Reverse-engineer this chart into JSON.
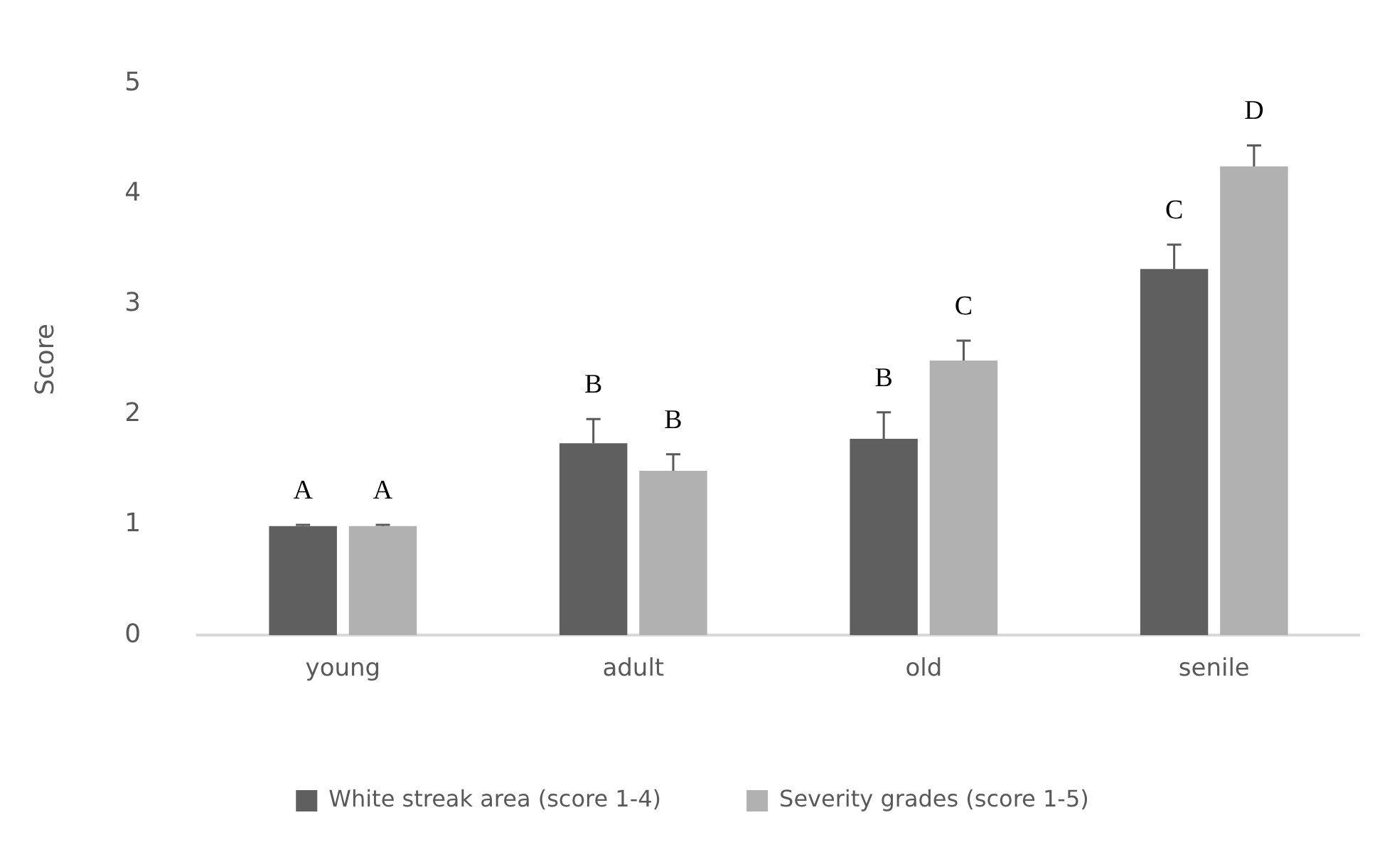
{
  "chart_data": {
    "type": "bar",
    "ylabel": "Score",
    "categories": [
      "young",
      "adult",
      "old",
      "senile"
    ],
    "series": [
      {
        "name": "White streak area (score 1-4)",
        "color": "#5f5f5f",
        "values": [
          0.99,
          1.74,
          1.78,
          3.32
        ],
        "errors": [
          0.01,
          0.22,
          0.24,
          0.22
        ],
        "value_labels": [
          "A",
          "B",
          "B",
          "C"
        ]
      },
      {
        "name": "Severity grades (score 1-5)",
        "color": "#b1b1b1",
        "values": [
          0.99,
          1.49,
          2.49,
          4.25
        ],
        "errors": [
          0.01,
          0.15,
          0.18,
          0.19
        ],
        "value_labels": [
          "A",
          "B",
          "C",
          "D"
        ]
      }
    ],
    "ylim": [
      0,
      5
    ],
    "yticks": [
      0,
      1,
      2,
      3,
      4,
      5
    ],
    "grid": false,
    "legend": "bottom"
  }
}
